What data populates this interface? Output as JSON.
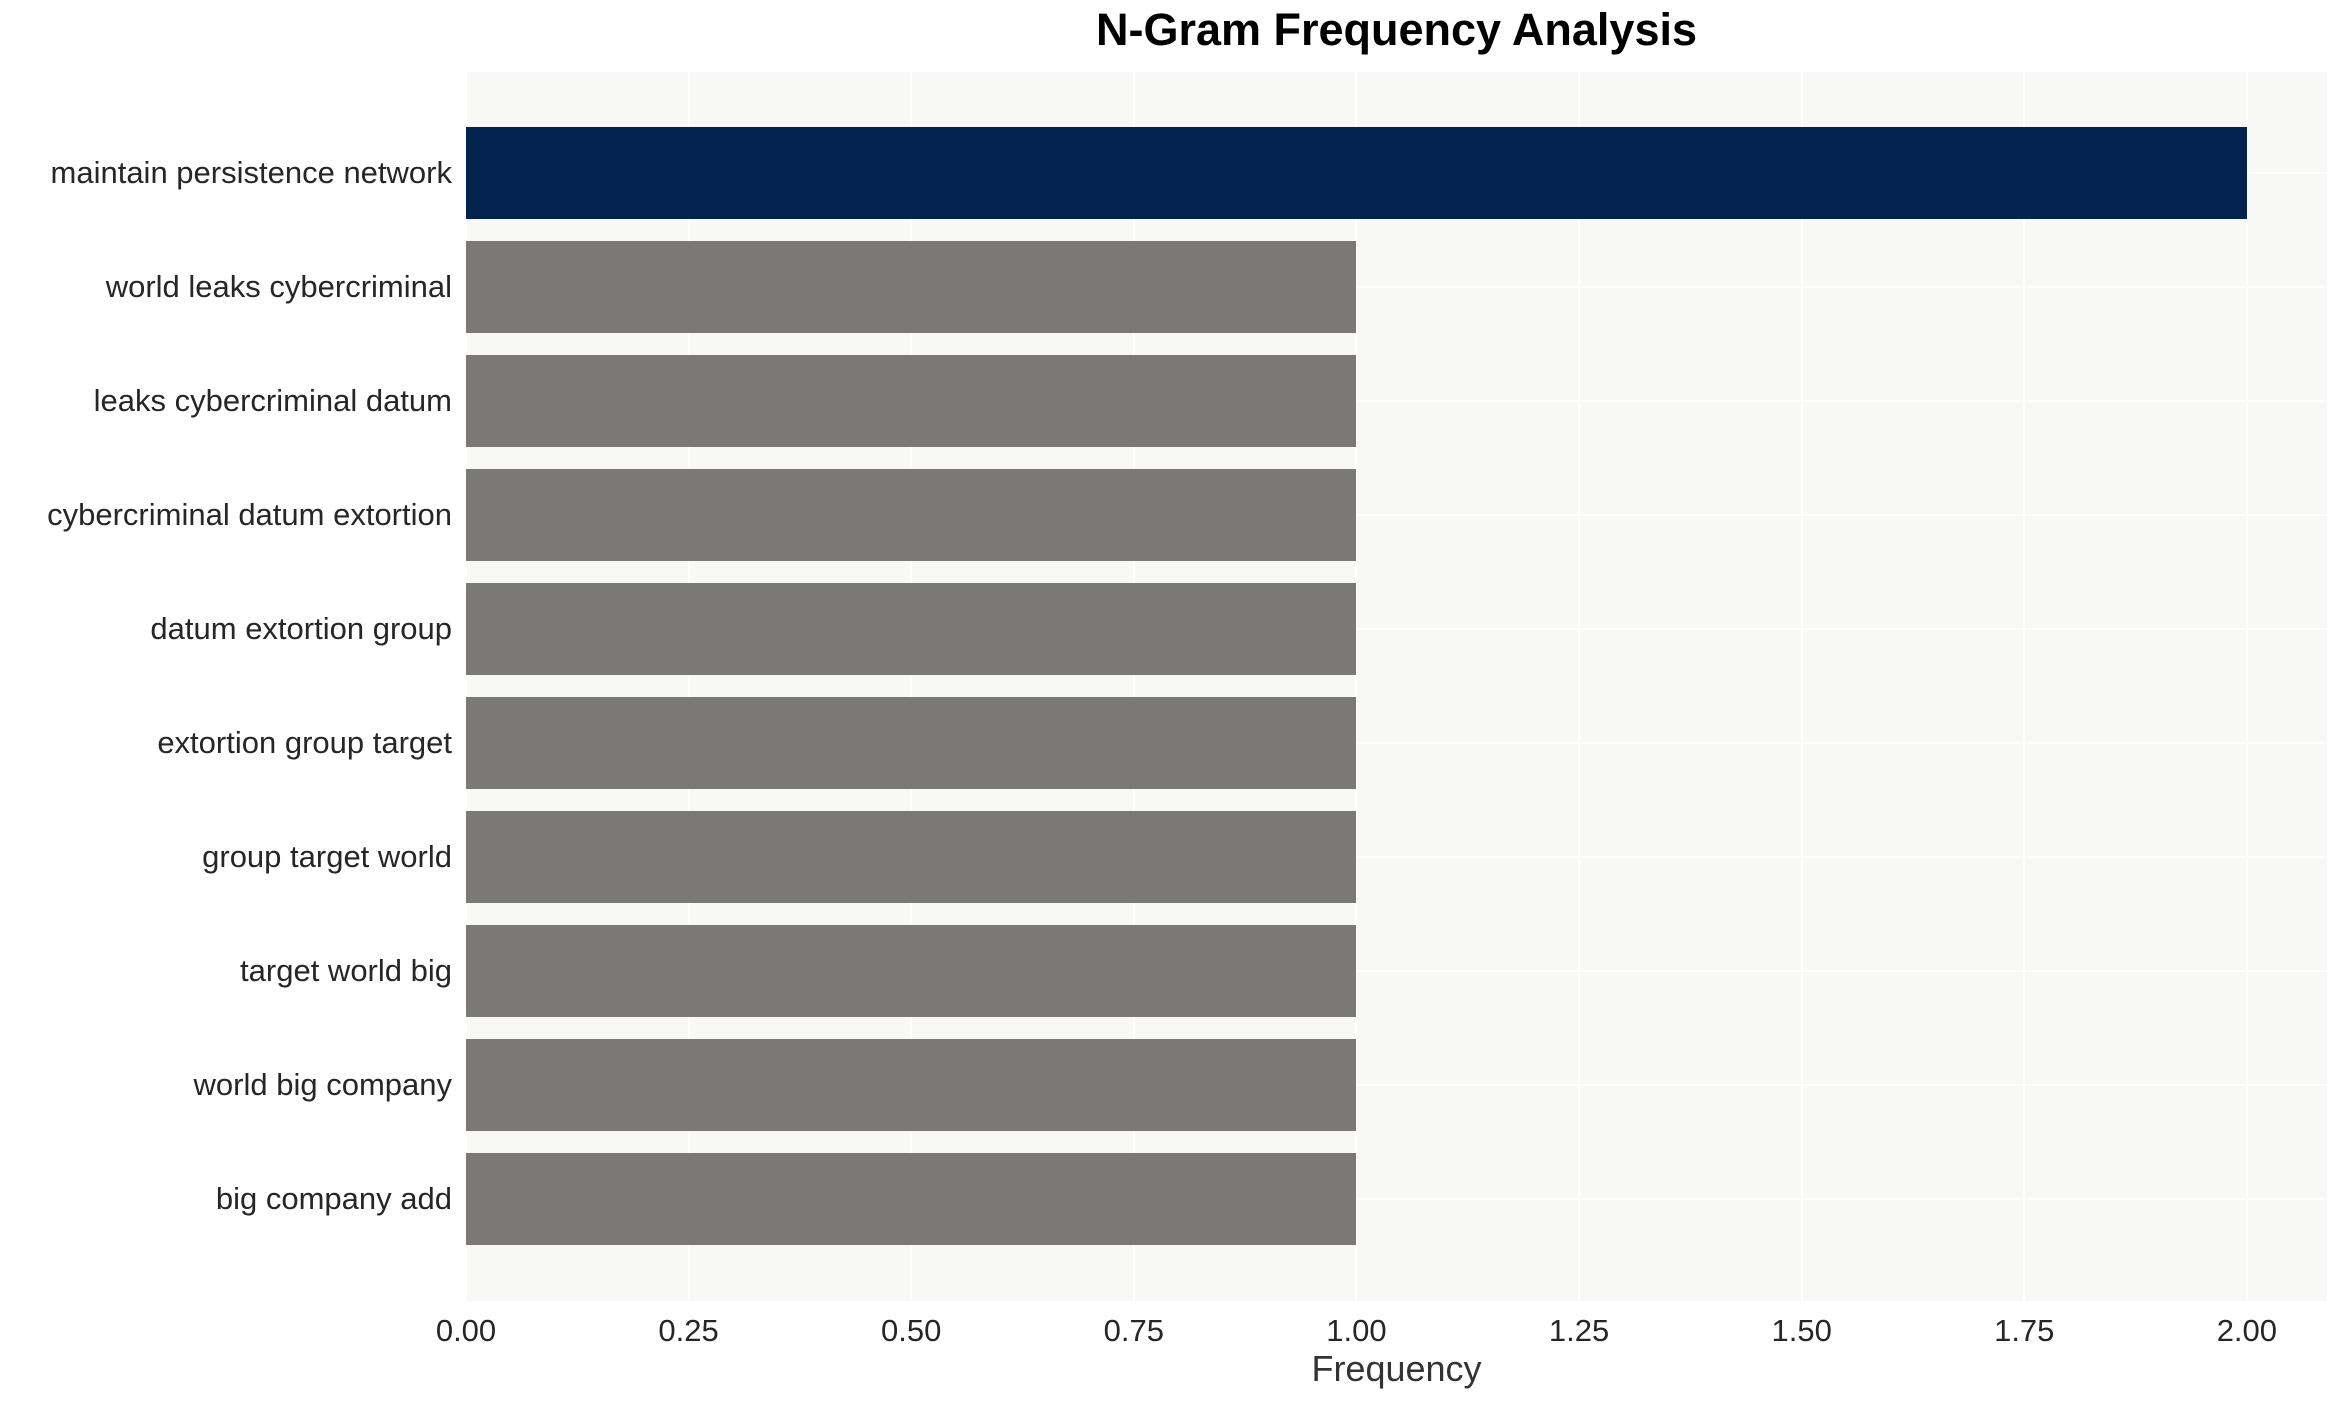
{
  "chart_data": {
    "type": "bar",
    "orientation": "horizontal",
    "title": "N-Gram Frequency Analysis",
    "xlabel": "Frequency",
    "ylabel": "",
    "categories": [
      "maintain persistence network",
      "world leaks cybercriminal",
      "leaks cybercriminal datum",
      "cybercriminal datum extortion",
      "datum extortion group",
      "extortion group target",
      "group target world",
      "target world big",
      "world big company",
      "big company add"
    ],
    "values": [
      2,
      1,
      1,
      1,
      1,
      1,
      1,
      1,
      1,
      1
    ],
    "bar_colors": [
      "#02234d",
      "#7a7975",
      "#7a7975",
      "#7a7975",
      "#7a7975",
      "#7a7975",
      "#7a7975",
      "#7a7975",
      "#7a7975",
      "#7a7975"
    ],
    "xtick_labels": [
      "0.00",
      "0.25",
      "0.50",
      "0.75",
      "1.00",
      "1.25",
      "1.50",
      "1.75",
      "2.00"
    ],
    "xtick_values": [
      0,
      0.25,
      0.5,
      0.75,
      1.0,
      1.25,
      1.5,
      1.75,
      2.0
    ],
    "xlim": [
      0,
      2.09
    ],
    "grid": "white major gridlines on light gray panel, vertical at x ticks, horizontal at category centers",
    "legend": "none",
    "colors": {
      "highlight_bar": "#02234d",
      "default_bar": "#7a7975",
      "panel_background": "#f8f8f7",
      "page_background": "#ffffff",
      "grid_line": "#ffffff",
      "tick_text": "#262626",
      "axis_label_text": "#333333",
      "title_text": "#000000"
    }
  }
}
